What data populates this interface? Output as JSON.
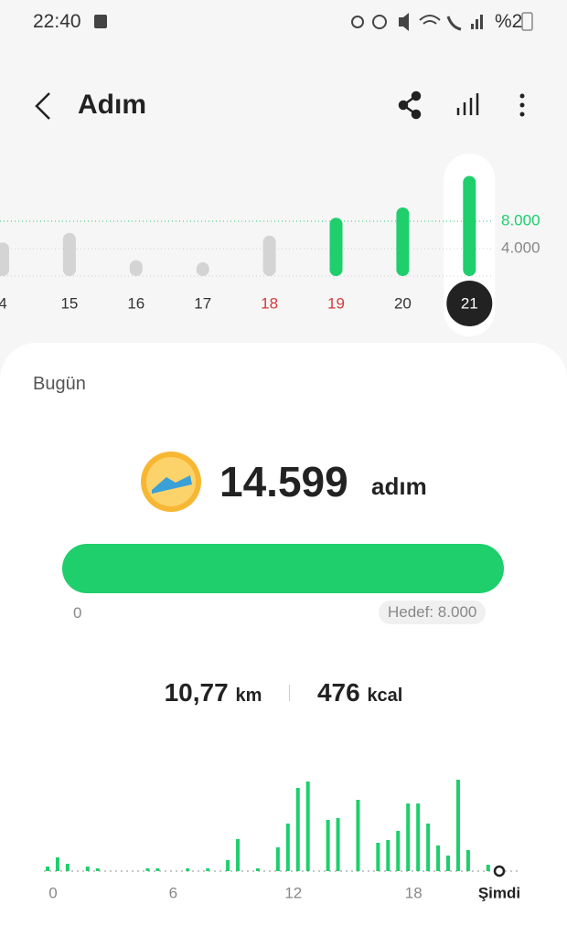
{
  "status_bar": {
    "time": "22:40",
    "battery": "%2"
  },
  "header": {
    "title": "Adım"
  },
  "daily_chart": {
    "type": "bar",
    "categories": [
      "4",
      "15",
      "16",
      "17",
      "18",
      "19",
      "20",
      "21"
    ],
    "values": [
      4900,
      6300,
      2300,
      2000,
      5900,
      8500,
      10000,
      14599
    ],
    "colors": [
      "#d4d4d4",
      "#d4d4d4",
      "#d4d4d4",
      "#d4d4d4",
      "#d4d4d4",
      "#1ecf6c",
      "#1ecf6c",
      "#1ecf6c"
    ],
    "label_colors": [
      "#333333",
      "#333333",
      "#333333",
      "#333333",
      "#d23b3b",
      "#d23b3b",
      "#333333",
      "#ffffff"
    ],
    "selected_index": 7,
    "ylim": [
      0,
      16000
    ],
    "yticks": [
      {
        "value": 8000,
        "label": "8.000"
      },
      {
        "value": 4000,
        "label": "4.000"
      }
    ]
  },
  "today": {
    "label": "Bugün",
    "steps": "14.599",
    "unit": "adım",
    "start": "0",
    "goal": "Hedef: 8.000"
  },
  "stats": {
    "distance": "10,77",
    "distance_unit": "km",
    "calories": "476",
    "calories_unit": "kcal"
  },
  "hourly_chart": {
    "type": "bar",
    "color": "#1ecf6c",
    "values": [
      70,
      210,
      112,
      0,
      70,
      42,
      0,
      0,
      0,
      0,
      42,
      42,
      0,
      0,
      42,
      0,
      42,
      0,
      168,
      490,
      0,
      42,
      0,
      364,
      728,
      1274,
      1372,
      0,
      784,
      812,
      0,
      1092,
      0,
      434,
      476,
      616,
      1036,
      1036,
      728,
      392,
      238,
      1400,
      322,
      0,
      98,
      0
    ],
    "x_labels": [
      "0",
      "6",
      "12",
      "18"
    ],
    "now_label": "Şimdi"
  }
}
